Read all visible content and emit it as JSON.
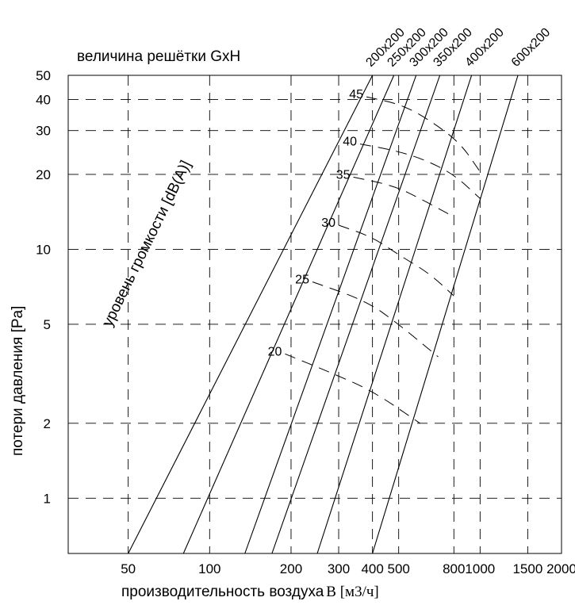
{
  "chart_data": {
    "type": "line",
    "title": "величина решётки GxH",
    "xlabel": "производительность воздуха",
    "xlabel_unit": "B [м3/ч]",
    "ylabel": "потери давления [Pa]",
    "noise_label": "уровень громкости [dB(A)]",
    "x_scale": "log",
    "y_scale": "log",
    "xlim": [
      30,
      2000
    ],
    "ylim": [
      0.6,
      50
    ],
    "grid": true,
    "x_ticks": [
      50,
      100,
      200,
      300,
      400,
      500,
      800,
      1000,
      1500,
      2000
    ],
    "y_ticks": [
      1,
      2,
      5,
      10,
      20,
      30,
      40,
      50
    ],
    "series": [
      {
        "name": "200x200",
        "points": [
          [
            50,
            0.6
          ],
          [
            400,
            50
          ]
        ]
      },
      {
        "name": "250x200",
        "points": [
          [
            80,
            0.6
          ],
          [
            480,
            50
          ]
        ]
      },
      {
        "name": "300x200",
        "points": [
          [
            135,
            0.6
          ],
          [
            580,
            50
          ]
        ]
      },
      {
        "name": "350x200",
        "points": [
          [
            170,
            0.6
          ],
          [
            710,
            50
          ]
        ]
      },
      {
        "name": "400x200",
        "points": [
          [
            250,
            0.6
          ],
          [
            930,
            50
          ]
        ]
      },
      {
        "name": "600x200",
        "points": [
          [
            400,
            0.6
          ],
          [
            1380,
            50
          ]
        ]
      }
    ],
    "noise_curves": [
      {
        "name": "20",
        "points": [
          [
            190,
            3.8
          ],
          [
            280,
            3.2
          ],
          [
            400,
            2.7
          ],
          [
            600,
            2.0
          ]
        ]
      },
      {
        "name": "25",
        "points": [
          [
            240,
            7.4
          ],
          [
            380,
            6.2
          ],
          [
            500,
            5.0
          ],
          [
            700,
            3.7
          ]
        ]
      },
      {
        "name": "30",
        "points": [
          [
            300,
            12.5
          ],
          [
            400,
            11.2
          ],
          [
            500,
            9.5
          ],
          [
            650,
            8.0
          ],
          [
            800,
            6.5
          ]
        ]
      },
      {
        "name": "35",
        "points": [
          [
            340,
            19.5
          ],
          [
            480,
            18.0
          ],
          [
            600,
            16.0
          ],
          [
            800,
            13.5
          ]
        ]
      },
      {
        "name": "40",
        "points": [
          [
            360,
            26.5
          ],
          [
            480,
            25.0
          ],
          [
            620,
            23.0
          ],
          [
            800,
            20.0
          ],
          [
            1000,
            16.0
          ]
        ]
      },
      {
        "name": "45",
        "points": [
          [
            380,
            41.0
          ],
          [
            520,
            38.0
          ],
          [
            680,
            32.0
          ],
          [
            850,
            26.5
          ],
          [
            1000,
            20.5
          ]
        ]
      }
    ]
  }
}
